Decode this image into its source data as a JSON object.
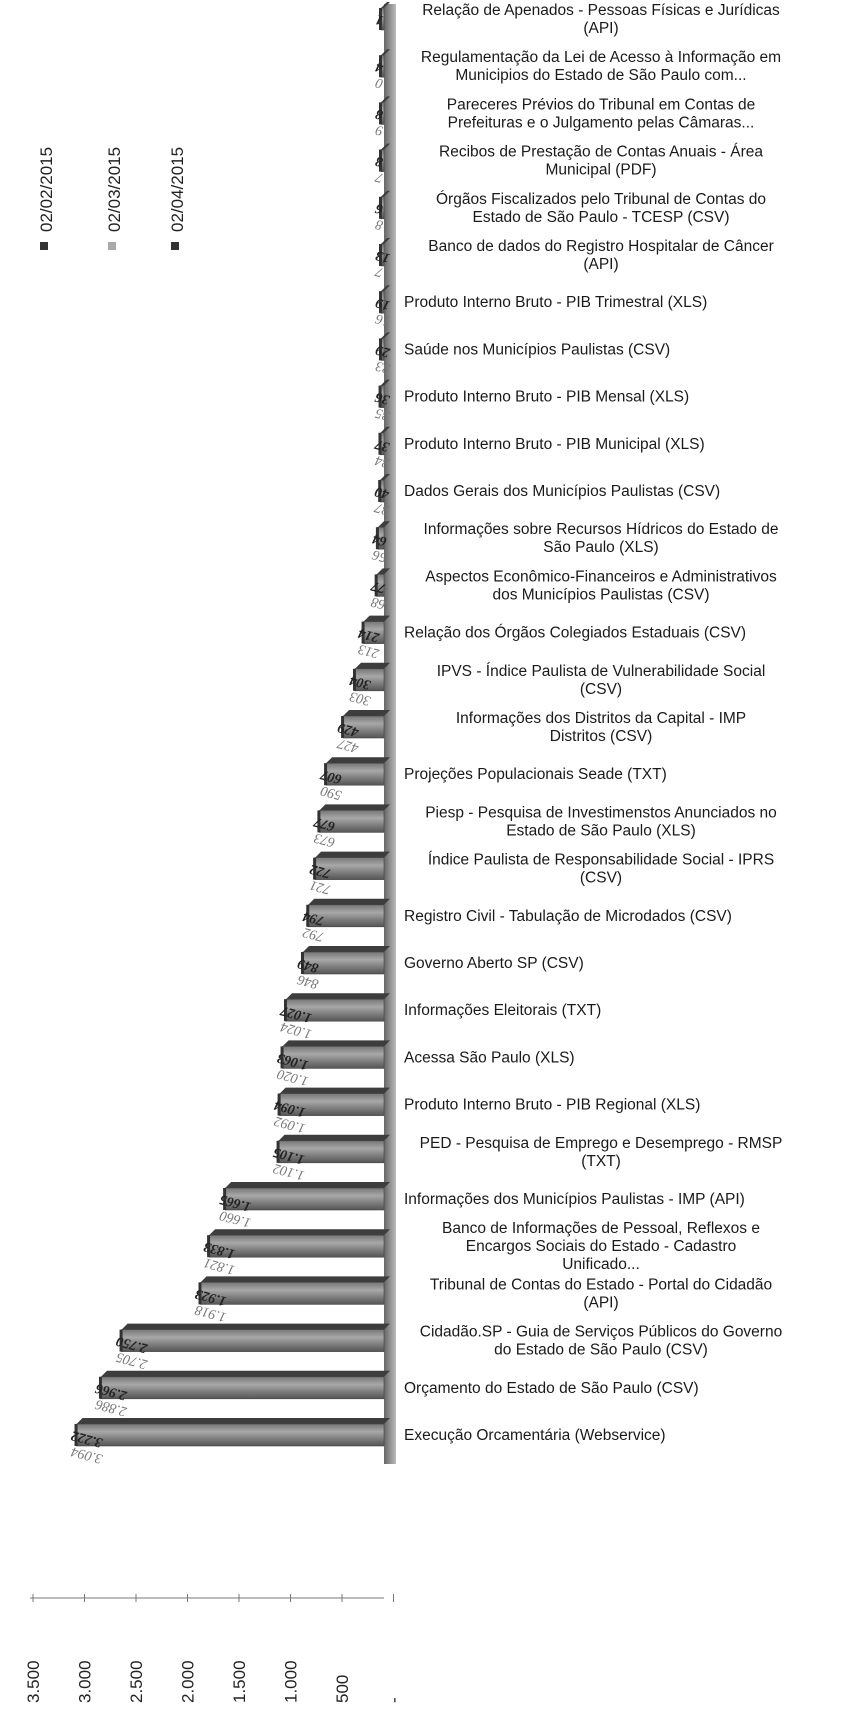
{
  "chart_data": {
    "type": "bar",
    "orientation": "horizontal",
    "categories": [
      "Relação de Apenados - Pessoas Físicas e Jurídicas (API)",
      "Regulamentação da Lei de Acesso à Informação em Municipios do Estado de São Paulo com...",
      "Pareceres Prévios do Tribunal em Contas de Prefeituras e o Julgamento pelas Câmaras...",
      "Recibos de Prestação de Contas Anuais - Área Municipal (PDF)",
      "Órgãos Fiscalizados pelo Tribunal de Contas do Estado de São Paulo - TCESP (CSV)",
      "Banco de dados do Registro Hospitalar de Câncer (API)",
      "Produto Interno Bruto - PIB Trimestral (XLS)",
      "Saúde nos Municípios Paulistas (CSV)",
      "Produto Interno Bruto - PIB Mensal (XLS)",
      "Produto Interno Bruto - PIB Municipal (XLS)",
      "Dados Gerais dos Municípios Paulistas (CSV)",
      "Informações sobre Recursos Hídricos do Estado de São Paulo (XLS)",
      "Aspectos Econômico-Financeiros e Administrativos dos Municípios Paulistas (CSV)",
      "Relação dos Órgãos Colegiados Estaduais (CSV)",
      "IPVS - Índice Paulista de Vulnerabilidade Social (CSV)",
      "Informações dos Distritos da Capital - IMP Distritos (CSV)",
      "Projeções Populacionais Seade (TXT)",
      "Piesp - Pesquisa de Investimenstos Anunciados no Estado de São Paulo (XLS)",
      "Índice Paulista de Responsabilidade Social - IPRS (CSV)",
      "Registro Civil - Tabulação de Microdados (CSV)",
      "Governo Aberto SP (CSV)",
      "Informações Eleitorais (TXT)",
      "Acessa São Paulo (XLS)",
      "Produto Interno Bruto - PIB Regional (XLS)",
      "PED - Pesquisa de Emprego e Desemprego - RMSP (TXT)",
      "Informações dos Municípios Paulistas - IMP (API)",
      "Banco de Informações de Pessoal, Reflexos e Encargos Sociais do Estado - Cadastro Unificado...",
      "Tribunal de Contas do Estado - Portal do Cidadão (API)",
      "Cidadão.SP - Guia de Serviços Públicos do Governo do Estado de São Paulo (CSV)",
      "Orçamento do Estado de São Paulo (CSV)",
      "Execução Orcamentária (Webservice)"
    ],
    "series": [
      {
        "name": "02/02/2015",
        "color": "#333333",
        "values": [
          null,
          null,
          null,
          null,
          null,
          null,
          null,
          null,
          null,
          null,
          null,
          null,
          null,
          null,
          null,
          null,
          null,
          null,
          null,
          null,
          null,
          null,
          null,
          null,
          null,
          null,
          null,
          null,
          null,
          null,
          null
        ]
      },
      {
        "name": "02/03/2015",
        "color": "#999999",
        "values": [
          null,
          0,
          9,
          7,
          8,
          7,
          16,
          33,
          35,
          34,
          37,
          56,
          68,
          213,
          303,
          427,
          590,
          673,
          721,
          792,
          846,
          1024,
          1020,
          1092,
          1102,
          1660,
          1821,
          1918,
          2705,
          2886,
          3094
        ]
      },
      {
        "name": "02/04/2015",
        "color": "#3a3a3a",
        "values": [
          1,
          4,
          8,
          8,
          6,
          13,
          19,
          29,
          36,
          37,
          40,
          64,
          77,
          214,
          304,
          429,
          607,
          677,
          722,
          794,
          849,
          1027,
          1063,
          1094,
          1105,
          1665,
          1833,
          1923,
          2750,
          2966,
          3222
        ]
      }
    ],
    "axis_ticks": [
      "3.500",
      "3.000",
      "2.500",
      "2.000",
      "1.500",
      "1.000",
      "500",
      "-"
    ],
    "xlim": [
      0,
      3500
    ],
    "legend_position": "top-left",
    "grid": false
  }
}
